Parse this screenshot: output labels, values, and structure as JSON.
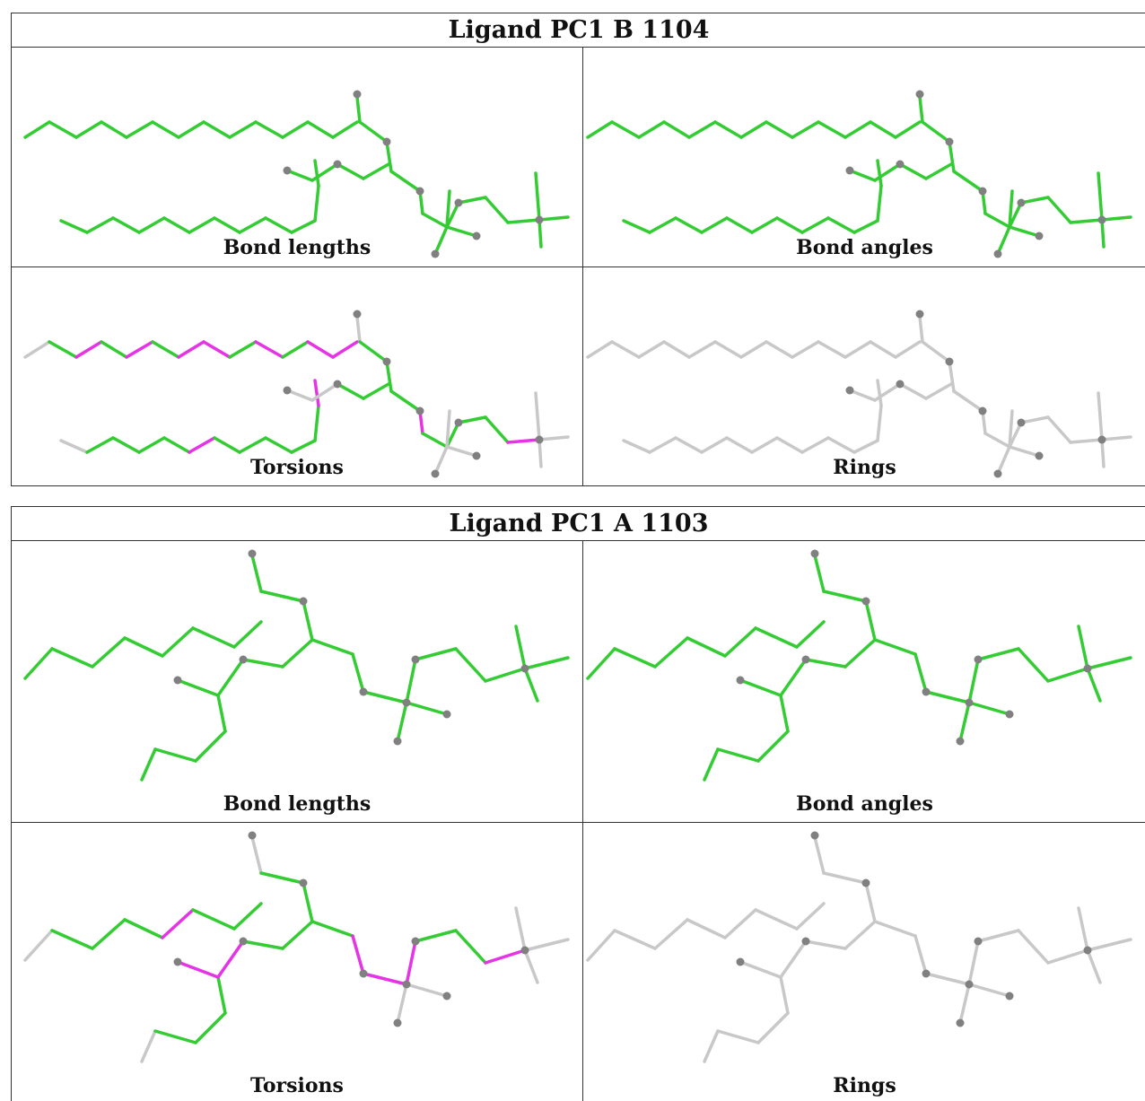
{
  "panels": [
    {
      "title": "Ligand PC1 B 1104",
      "cells": [
        {
          "label": "Bond lengths",
          "scheme": "lengths"
        },
        {
          "label": "Bond angles",
          "scheme": "angles"
        },
        {
          "label": "Torsions",
          "scheme": "torsions"
        },
        {
          "label": "Rings",
          "scheme": "rings"
        }
      ]
    },
    {
      "title": "Ligand PC1 A 1103",
      "cells": [
        {
          "label": "Bond lengths",
          "scheme": "lengths"
        },
        {
          "label": "Bond angles",
          "scheme": "angles"
        },
        {
          "label": "Torsions",
          "scheme": "torsions"
        },
        {
          "label": "Rings",
          "scheme": "rings"
        }
      ]
    }
  ],
  "colors": {
    "ok": "#33cc33",
    "outlier": "#e633e6",
    "neutral": "#c8c8c8",
    "atom": "#808080",
    "border": "#333333"
  }
}
